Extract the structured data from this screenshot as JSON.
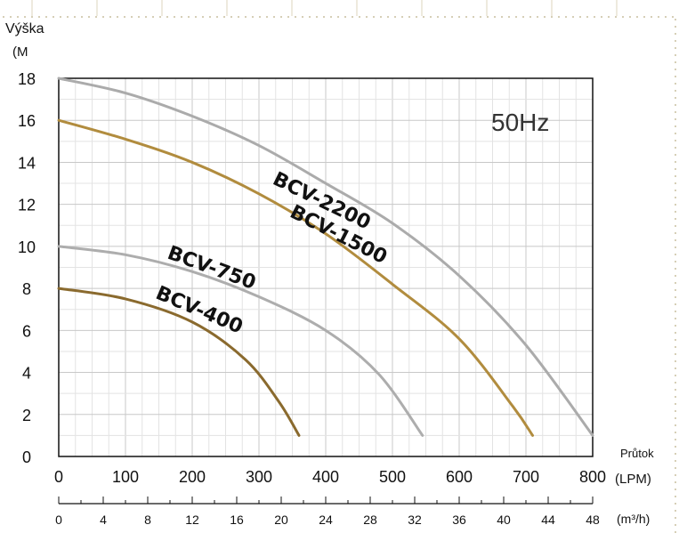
{
  "chart_data": {
    "type": "line",
    "y_axis": {
      "label_line1": "Výška",
      "label_line2": "(M",
      "ticks": [
        "0",
        "2",
        "4",
        "6",
        "8",
        "10",
        "12",
        "14",
        "16",
        "18"
      ],
      "ylim": [
        0,
        18
      ]
    },
    "x_axis": {
      "label": "Průtok",
      "unit": "(LPM)",
      "ticks": [
        "0",
        "100",
        "200",
        "300",
        "400",
        "500",
        "600",
        "700",
        "800"
      ],
      "xlim": [
        0,
        800
      ]
    },
    "x_axis_secondary": {
      "unit": "(m³/h)",
      "ticks": [
        "0",
        "4",
        "8",
        "12",
        "16",
        "20",
        "24",
        "28",
        "32",
        "36",
        "40",
        "44",
        "48"
      ],
      "xlim": [
        0,
        48
      ]
    },
    "annotation": "50Hz",
    "grid": true,
    "series": [
      {
        "name": "BCV-2200",
        "color": "#ababab",
        "points": [
          [
            0,
            18
          ],
          [
            100,
            17.3
          ],
          [
            200,
            16.2
          ],
          [
            300,
            14.8
          ],
          [
            400,
            13.0
          ],
          [
            500,
            11.1
          ],
          [
            600,
            8.6
          ],
          [
            700,
            5.3
          ],
          [
            800,
            1.0
          ]
        ]
      },
      {
        "name": "BCV-1500",
        "color": "#b18c3e",
        "points": [
          [
            0,
            16
          ],
          [
            100,
            15.1
          ],
          [
            200,
            14.0
          ],
          [
            300,
            12.5
          ],
          [
            400,
            10.6
          ],
          [
            500,
            8.2
          ],
          [
            600,
            5.6
          ],
          [
            680,
            2.4
          ],
          [
            710,
            1.0
          ]
        ]
      },
      {
        "name": "BCV-750",
        "color": "#adadad",
        "points": [
          [
            0,
            10
          ],
          [
            100,
            9.6
          ],
          [
            200,
            8.8
          ],
          [
            300,
            7.6
          ],
          [
            400,
            6.0
          ],
          [
            480,
            3.9
          ],
          [
            545,
            1.0
          ]
        ]
      },
      {
        "name": "BCV-400",
        "color": "#8a6a2e",
        "points": [
          [
            0,
            8
          ],
          [
            100,
            7.5
          ],
          [
            200,
            6.4
          ],
          [
            280,
            4.6
          ],
          [
            330,
            2.6
          ],
          [
            360,
            1.0
          ]
        ]
      }
    ]
  }
}
